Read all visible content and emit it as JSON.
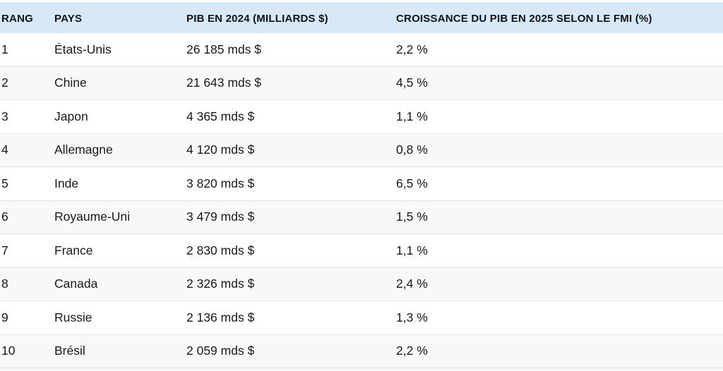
{
  "table": {
    "header": {
      "rank": "RANG",
      "country": "PAYS",
      "gdp": "PIB EN 2024 (MILLIARDS $)",
      "growth": "CROISSANCE DU PIB EN 2025 SELON LE FMI (%)"
    },
    "rows": [
      {
        "rank": "1",
        "country": "États-Unis",
        "gdp": "26 185 mds $",
        "growth": "2,2 %"
      },
      {
        "rank": "2",
        "country": "Chine",
        "gdp": "21 643 mds $",
        "growth": "4,5 %"
      },
      {
        "rank": "3",
        "country": "Japon",
        "gdp": "4 365 mds $",
        "growth": "1,1 %"
      },
      {
        "rank": "4",
        "country": "Allemagne",
        "gdp": "4 120 mds $",
        "growth": "0,8 %"
      },
      {
        "rank": "5",
        "country": "Inde",
        "gdp": "3 820 mds $",
        "growth": "6,5 %"
      },
      {
        "rank": "6",
        "country": "Royaume-Uni",
        "gdp": "3 479 mds $",
        "growth": "1,5 %"
      },
      {
        "rank": "7",
        "country": "France",
        "gdp": "2 830 mds $",
        "growth": "1,1 %"
      },
      {
        "rank": "8",
        "country": "Canada",
        "gdp": "2 326 mds $",
        "growth": "2,4 %"
      },
      {
        "rank": "9",
        "country": "Russie",
        "gdp": "2 136 mds $",
        "growth": "1,3 %"
      },
      {
        "rank": "10",
        "country": "Brésil",
        "gdp": "2 059 mds $",
        "growth": "2,2 %"
      }
    ]
  },
  "colors": {
    "header_bg": "#d7e9f6",
    "header_top_border": "#b3d3e4",
    "row_bg": "#ffffff",
    "row_alt_bg": "#f7f8f8",
    "row_separator": "#e3e3e3",
    "text": "#17191d",
    "header_text": "#0f1215"
  },
  "chart_data": {
    "type": "table",
    "columns": [
      "RANG",
      "PAYS",
      "PIB EN 2024 (MILLIARDS $)",
      "CROISSANCE DU PIB EN 2025 SELON LE FMI (%)"
    ],
    "rows": [
      [
        "1",
        "États-Unis",
        "26 185 mds $",
        "2,2 %"
      ],
      [
        "2",
        "Chine",
        "21 643 mds $",
        "4,5 %"
      ],
      [
        "3",
        "Japon",
        "4 365 mds $",
        "1,1 %"
      ],
      [
        "4",
        "Allemagne",
        "4 120 mds $",
        "0,8 %"
      ],
      [
        "5",
        "Inde",
        "3 820 mds $",
        "6,5 %"
      ],
      [
        "6",
        "Royaume-Uni",
        "3 479 mds $",
        "1,5 %"
      ],
      [
        "7",
        "France",
        "2 830 mds $",
        "1,1 %"
      ],
      [
        "8",
        "Canada",
        "2 326 mds $",
        "2,4 %"
      ],
      [
        "9",
        "Russie",
        "2 136 mds $",
        "1,3 %"
      ],
      [
        "10",
        "Brésil",
        "2 059 mds $",
        "2,2 %"
      ]
    ],
    "countries": [
      "États-Unis",
      "Chine",
      "Japon",
      "Allemagne",
      "Inde",
      "Royaume-Uni",
      "France",
      "Canada",
      "Russie",
      "Brésil"
    ],
    "pib_2024_milliards_usd": [
      26185,
      21643,
      4365,
      4120,
      3820,
      3479,
      2830,
      2326,
      2136,
      2059
    ],
    "croissance_pib_2025_fmi_pct": [
      2.2,
      4.5,
      1.1,
      0.8,
      6.5,
      1.5,
      1.1,
      2.4,
      1.3,
      2.2
    ]
  }
}
